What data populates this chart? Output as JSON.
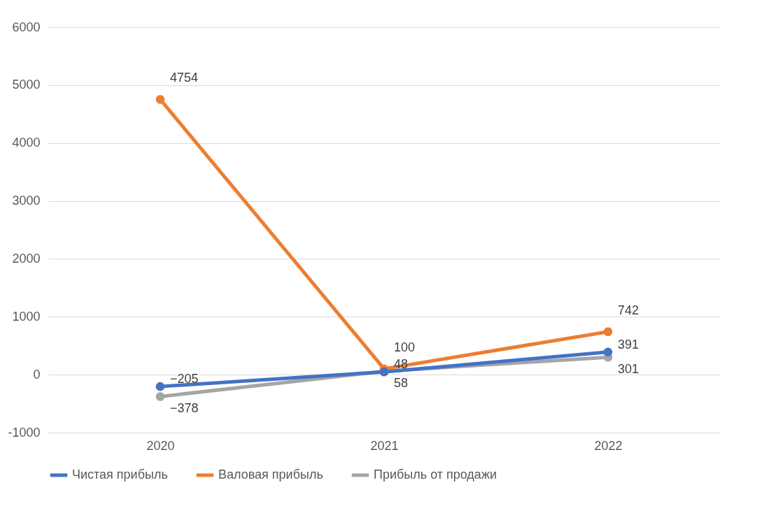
{
  "chart_data": {
    "type": "line",
    "categories": [
      "2020",
      "2021",
      "2022"
    ],
    "series": [
      {
        "name": "Чистая прибыль",
        "color": "#4472c4",
        "values": [
          -205,
          48,
          391
        ]
      },
      {
        "name": "Валовая прибыль",
        "color": "#ed7d31",
        "values": [
          4754,
          100,
          742
        ]
      },
      {
        "name": "Прибыль от продажи",
        "color": "#a5a5a5",
        "values": [
          -378,
          58,
          301
        ]
      }
    ],
    "ylim": [
      -1000,
      6000
    ],
    "yticks": [
      -1000,
      0,
      1000,
      2000,
      3000,
      4000,
      5000,
      6000
    ],
    "grid": "y",
    "legend": "bottom",
    "marker": "circle",
    "line_style": "solid",
    "data_labels": true
  }
}
